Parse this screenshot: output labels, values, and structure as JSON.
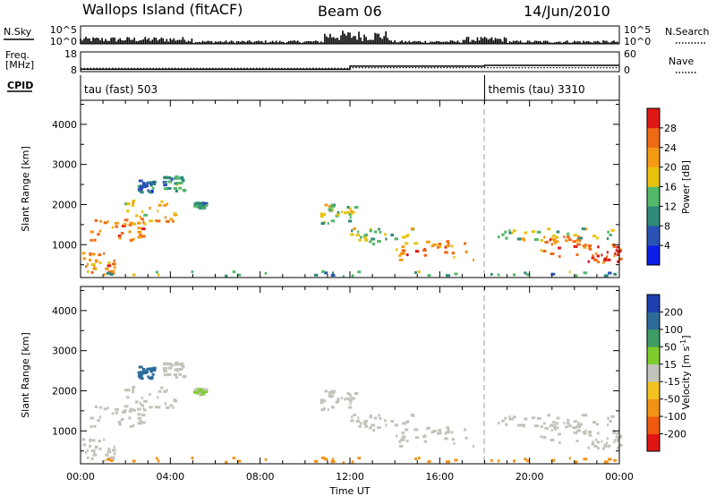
{
  "header": {
    "station": "Wallops Island (fitACF)",
    "beam": "Beam 06",
    "date": "14/Jun/2010"
  },
  "panels": {
    "nsky": {
      "left_label": "N.Sky",
      "right_label": "N.Search",
      "left_ticks": [
        "10^5",
        "10^0"
      ],
      "right_ticks": [
        "10^5",
        "10^0"
      ]
    },
    "freq": {
      "left_label_1": "Freq.",
      "left_label_2": "[MHz]",
      "right_label": "Nave",
      "left_ticks": [
        "18",
        "8"
      ],
      "right_ticks": [
        "60",
        "0"
      ],
      "freq_steps": [
        [
          0,
          9.2
        ],
        [
          12.0,
          10.8
        ],
        [
          18.0,
          11.2
        ],
        [
          24.0,
          11.2
        ]
      ],
      "nave_steps": [
        [
          0,
          10
        ],
        [
          12.0,
          12
        ],
        [
          24.0,
          12
        ]
      ]
    },
    "cpid": {
      "label": "CPID",
      "segments": [
        {
          "start": 0.0,
          "end": 18.0,
          "label": "tau (fast) 503"
        },
        {
          "start": 18.0,
          "end": 24.0,
          "label": "themis (tau) 3310"
        }
      ]
    }
  },
  "colorbars": {
    "power": {
      "label": "Power [dB]",
      "ticks": [
        "4",
        "8",
        "12",
        "16",
        "20",
        "24",
        "28"
      ],
      "colors": [
        "#0a1de6",
        "#2b52b7",
        "#2f8a7a",
        "#52b86a",
        "#e8c20e",
        "#f59a12",
        "#ef6a15",
        "#e01818"
      ]
    },
    "velocity": {
      "label": "Velocity [m s",
      "label_sup": "-1",
      "label_close": "]",
      "ticks": [
        "200",
        "100",
        "50",
        "15",
        "-15",
        "-50",
        "-100",
        "-200"
      ],
      "colors": [
        "#1f3fb0",
        "#2b6b9a",
        "#3f9c62",
        "#7fcc2e",
        "#c3c3bb",
        "#f2c320",
        "#f39315",
        "#ef5a10",
        "#e11414"
      ]
    }
  },
  "axes": {
    "y_label": "Slant Range [km]",
    "y_ticks": [
      "1000",
      "2000",
      "3000",
      "4000"
    ],
    "x_ticks": [
      "00:00",
      "04:00",
      "08:00",
      "12:00",
      "16:00",
      "20:00",
      "00:00"
    ],
    "x_label": "Time UT"
  },
  "chart_data": {
    "type": "heatmap",
    "x_range_hours": [
      0,
      24
    ],
    "y_range_km": [
      180,
      4600
    ],
    "regions": [
      {
        "t0": 0.0,
        "t1": 1.5,
        "r0": 250,
        "r1": 800,
        "power": 24,
        "velocity": 0
      },
      {
        "t0": 0.2,
        "t1": 2.8,
        "r0": 1100,
        "r1": 1600,
        "power": 24,
        "velocity": 0
      },
      {
        "t0": 1.8,
        "t1": 4.2,
        "r0": 1500,
        "r1": 2100,
        "power": 20,
        "velocity": 0
      },
      {
        "t0": 3.6,
        "t1": 4.6,
        "r0": 2300,
        "r1": 2700,
        "power": 12,
        "velocity": 0
      },
      {
        "t0": 2.5,
        "t1": 3.2,
        "r0": 2300,
        "r1": 2600,
        "power": 8,
        "velocity": 120
      },
      {
        "t0": 5.0,
        "t1": 5.6,
        "r0": 1900,
        "r1": 2050,
        "power": 12,
        "velocity": 20
      },
      {
        "t0": 10.6,
        "t1": 12.2,
        "r0": 1500,
        "r1": 2000,
        "power": 16,
        "velocity": 0
      },
      {
        "t0": 12.0,
        "t1": 15.0,
        "r0": 1000,
        "r1": 1400,
        "power": 16,
        "velocity": 0
      },
      {
        "t0": 14.0,
        "t1": 17.5,
        "r0": 600,
        "r1": 1100,
        "power": 24,
        "velocity": 0
      },
      {
        "t0": 18.3,
        "t1": 24.0,
        "r0": 1100,
        "r1": 1400,
        "power": 16,
        "velocity": 0
      },
      {
        "t0": 19.2,
        "t1": 22.5,
        "r0": 700,
        "r1": 1200,
        "power": 24,
        "velocity": 0
      },
      {
        "t0": 22.5,
        "t1": 24.0,
        "r0": 500,
        "r1": 1000,
        "power": 28,
        "velocity": 0
      },
      {
        "t0": 0.0,
        "t1": 24.0,
        "r0": 200,
        "r1": 330,
        "power": 12,
        "velocity": -50
      }
    ]
  }
}
